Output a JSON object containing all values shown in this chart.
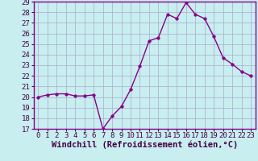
{
  "x": [
    0,
    1,
    2,
    3,
    4,
    5,
    6,
    7,
    8,
    9,
    10,
    11,
    12,
    13,
    14,
    15,
    16,
    17,
    18,
    19,
    20,
    21,
    22,
    23
  ],
  "y": [
    20.0,
    20.2,
    20.3,
    20.3,
    20.1,
    20.1,
    20.2,
    17.0,
    18.2,
    19.1,
    20.7,
    22.9,
    25.3,
    25.6,
    27.8,
    27.4,
    28.9,
    27.8,
    27.4,
    25.7,
    23.7,
    23.1,
    22.4,
    22.0
  ],
  "line_color": "#880088",
  "marker_color": "#880088",
  "bg_color": "#c8eef0",
  "grid_color": "#aaaacc",
  "xlabel": "Windchill (Refroidissement éolien,°C)",
  "ylim": [
    17,
    29
  ],
  "xlim": [
    -0.5,
    23.5
  ],
  "yticks": [
    17,
    18,
    19,
    20,
    21,
    22,
    23,
    24,
    25,
    26,
    27,
    28,
    29
  ],
  "xticks": [
    0,
    1,
    2,
    3,
    4,
    5,
    6,
    7,
    8,
    9,
    10,
    11,
    12,
    13,
    14,
    15,
    16,
    17,
    18,
    19,
    20,
    21,
    22,
    23
  ],
  "xlabel_fontsize": 7.5,
  "tick_fontsize": 6.5,
  "line_width": 1.0,
  "marker_size": 2.5
}
